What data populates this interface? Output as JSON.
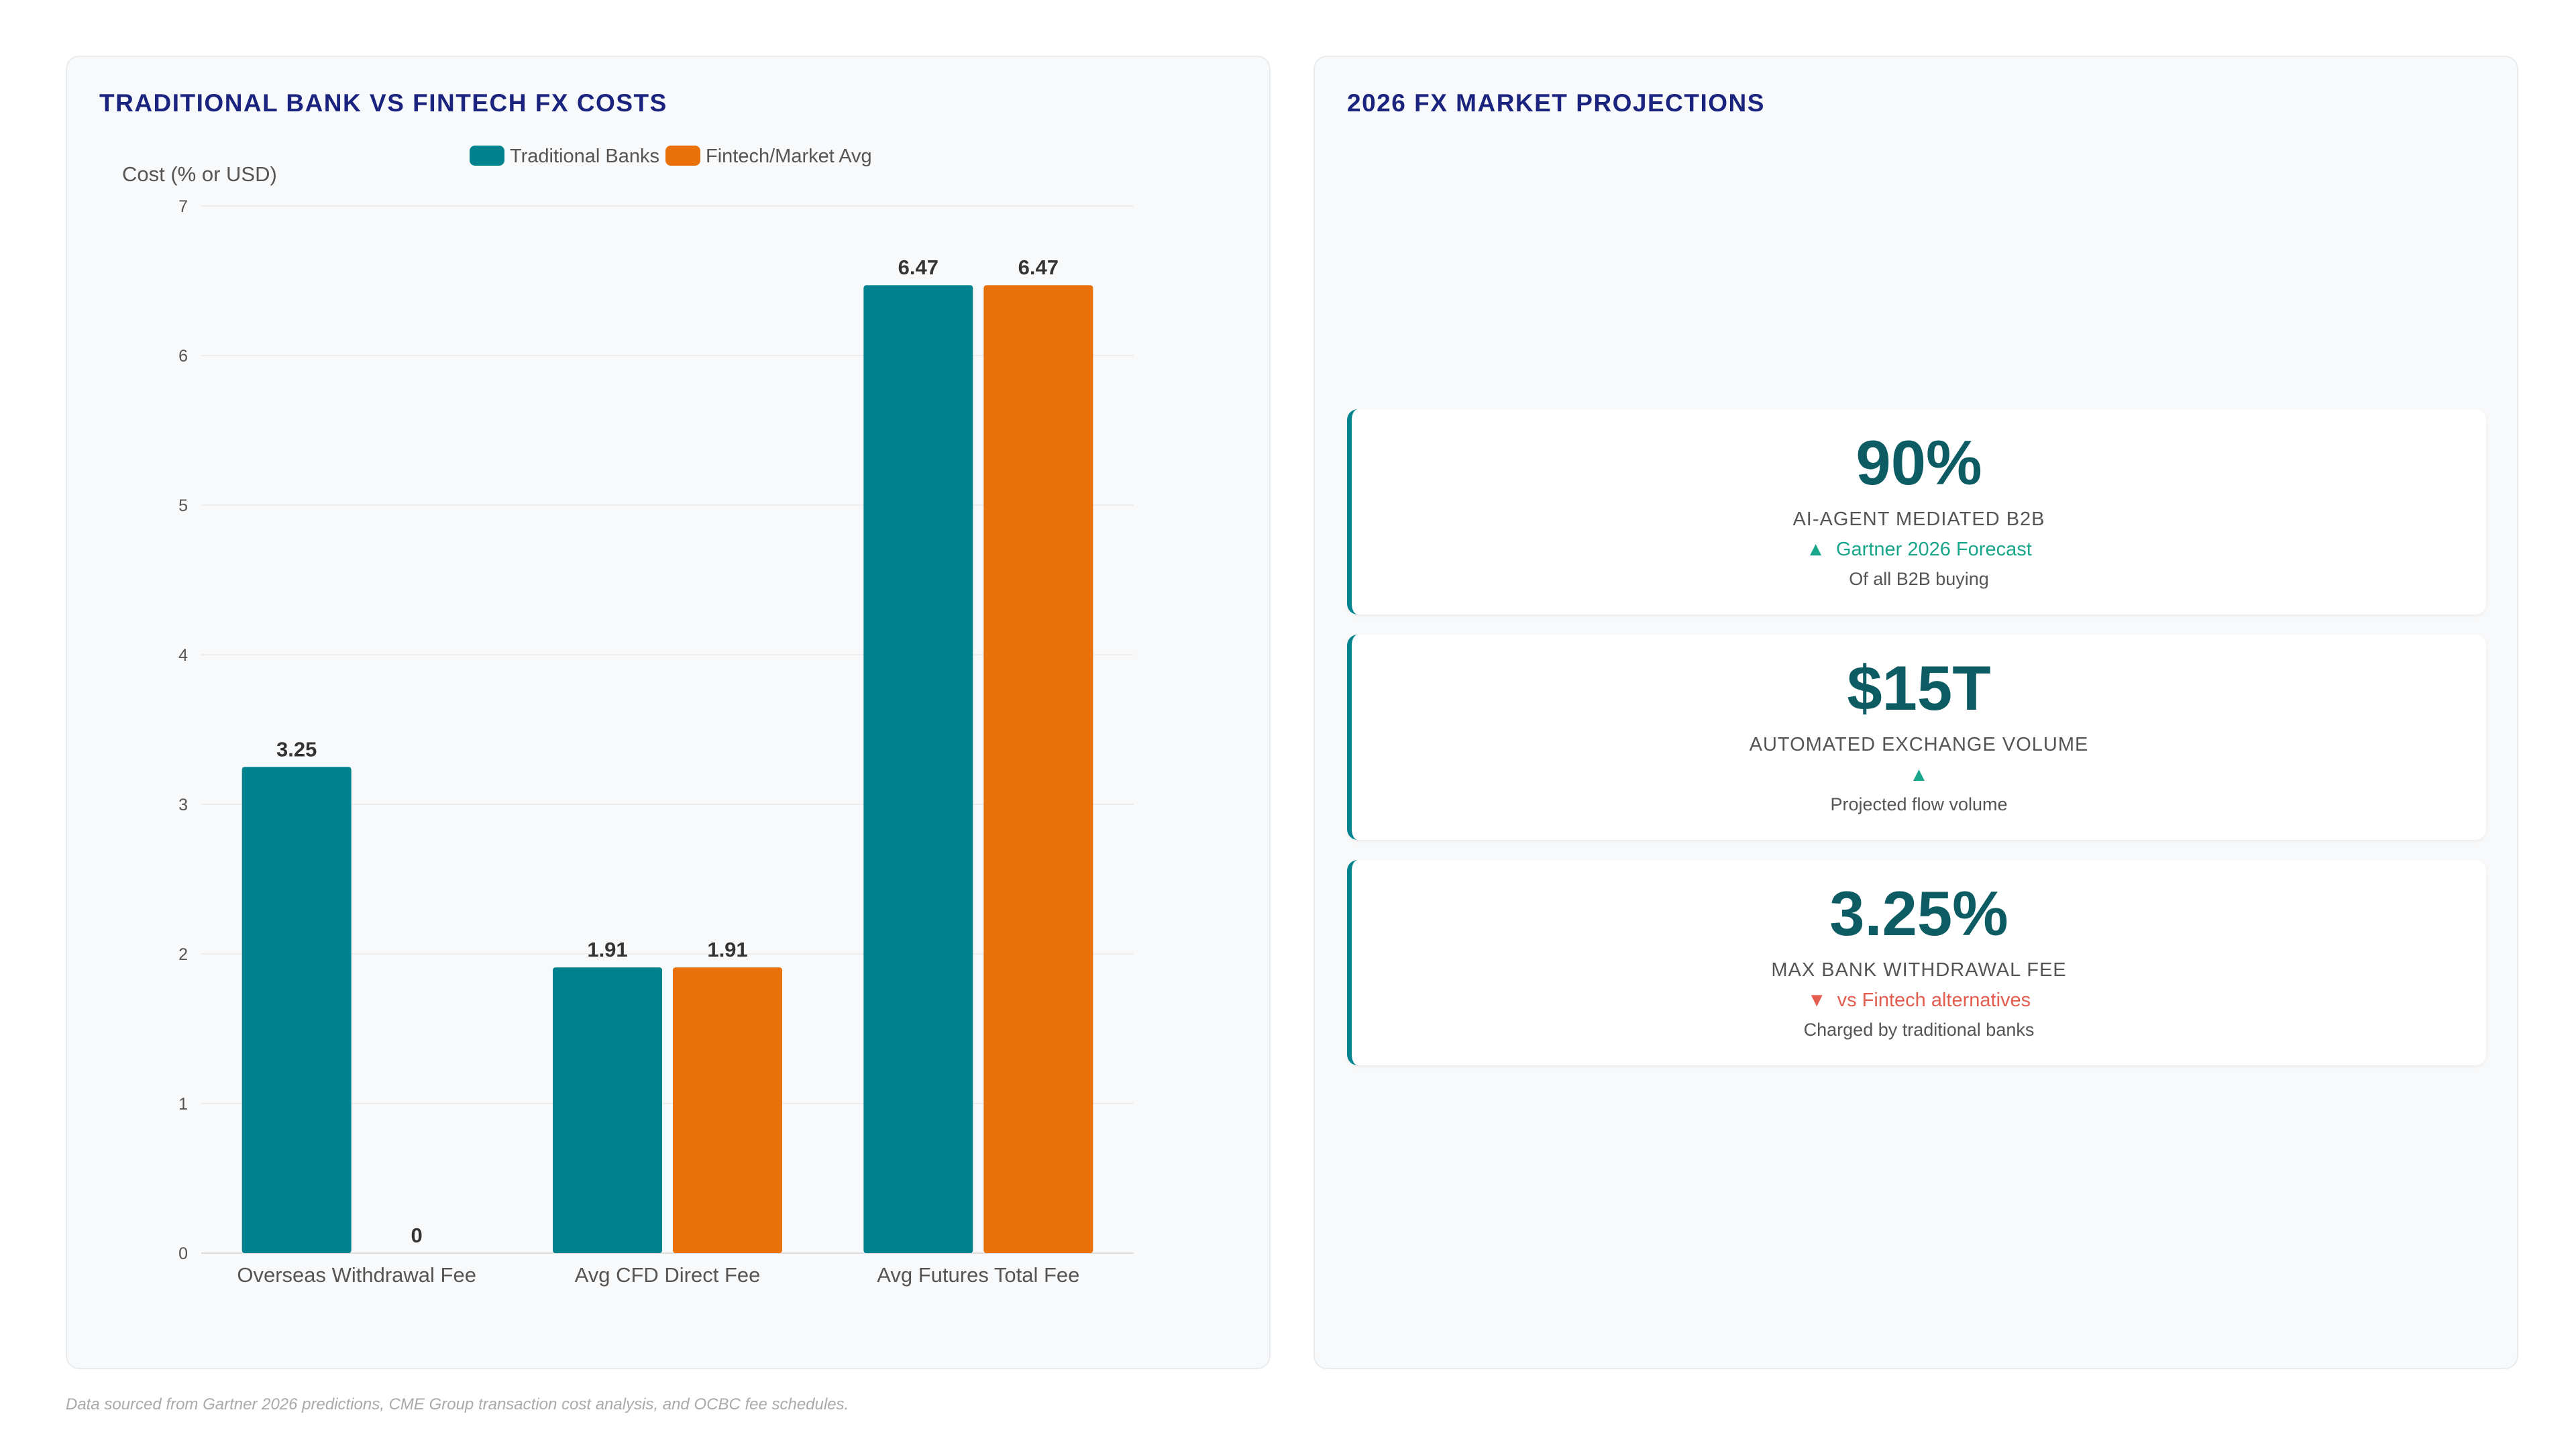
{
  "left_panel": {
    "title": "TRADITIONAL BANK VS FINTECH FX COSTS"
  },
  "right_panel": {
    "title": "2026 FX MARKET PROJECTIONS"
  },
  "chart_data": {
    "type": "bar",
    "title": "TRADITIONAL BANK VS FINTECH FX COSTS",
    "ylabel": "Cost (% or USD)",
    "xlabel": "",
    "ylim": [
      0,
      7
    ],
    "yticks": [
      0,
      1,
      2,
      3,
      4,
      5,
      6,
      7
    ],
    "grid": true,
    "legend_position": "top-center",
    "categories": [
      "Overseas Withdrawal Fee",
      "Avg CFD Direct Fee",
      "Avg Futures Total Fee"
    ],
    "series": [
      {
        "name": "Traditional Banks",
        "color": "#00838f",
        "values": [
          3.25,
          1.91,
          6.47
        ]
      },
      {
        "name": "Fintech/Market Avg",
        "color": "#e8710a",
        "values": [
          0,
          1.91,
          6.47
        ]
      }
    ]
  },
  "kpis": [
    {
      "value": "90%",
      "label": "AI-AGENT MEDIATED B2B",
      "trend_arrow": "▲",
      "trend_text": "Gartner 2026 Forecast",
      "trend_color": "#1aa68a",
      "note": "Of all B2B buying"
    },
    {
      "value": "$15T",
      "label": "AUTOMATED EXCHANGE VOLUME",
      "trend_arrow": "▲",
      "trend_text": "",
      "trend_color": "#1aa68a",
      "note": "Projected flow volume"
    },
    {
      "value": "3.25%",
      "label": "MAX BANK WITHDRAWAL FEE",
      "trend_arrow": "▼",
      "trend_text": "vs Fintech alternatives",
      "trend_color": "#e35d4f",
      "note": "Charged by traditional banks"
    }
  ],
  "footnote": "Data sourced from Gartner 2026 predictions, CME Group transaction cost analysis, and OCBC fee schedules."
}
